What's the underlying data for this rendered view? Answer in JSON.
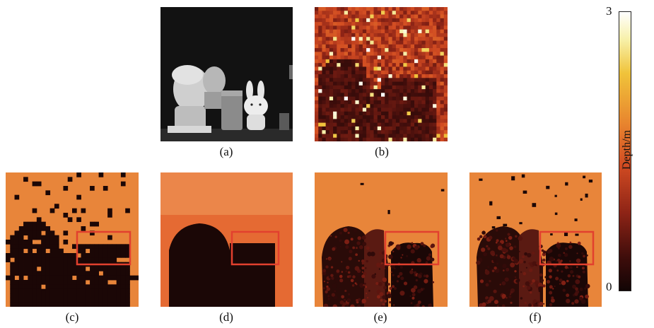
{
  "panels": [
    {
      "id": "a",
      "caption": "(a)",
      "type": "grayscale-photo"
    },
    {
      "id": "b",
      "caption": "(b)",
      "type": "noisy-depth-map"
    },
    {
      "id": "c",
      "caption": "(c)",
      "type": "depth-map-blocky"
    },
    {
      "id": "d",
      "caption": "(d)",
      "type": "depth-map-smooth"
    },
    {
      "id": "e",
      "caption": "(e)",
      "type": "depth-map-detailed"
    },
    {
      "id": "f",
      "caption": "(f)",
      "type": "depth-map-detailed"
    }
  ],
  "colorbar": {
    "label": "Depth/m",
    "max_label": "3",
    "min_label": "0",
    "min_value": 0,
    "max_value": 3,
    "colormap": "hot"
  },
  "colors": {
    "background": "#e8853a",
    "object": "#1b0706",
    "highlight_box": "#e2402e"
  }
}
